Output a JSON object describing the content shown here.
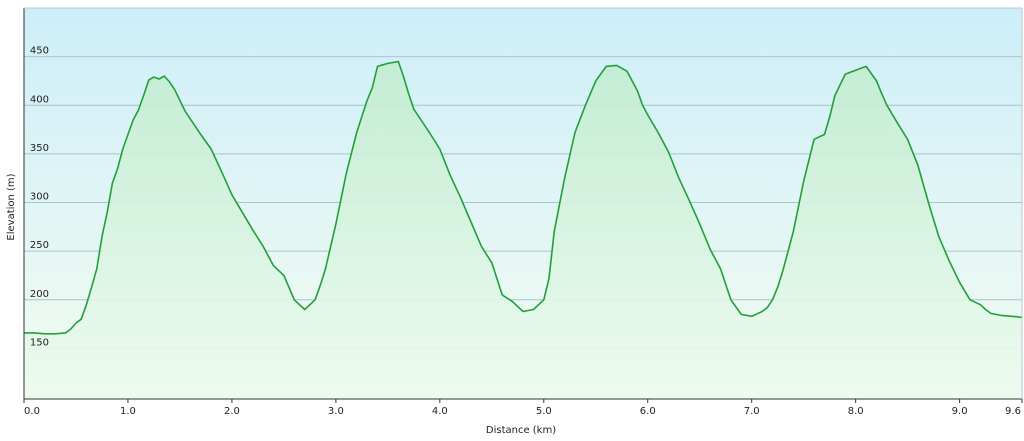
{
  "chart_data": {
    "type": "area",
    "title": "",
    "xlabel": "Distance  (km)",
    "ylabel": "Elevation (m)",
    "xlim": [
      0,
      9.6
    ],
    "ylim": [
      98,
      500
    ],
    "x_ticks": [
      0,
      1,
      2,
      3,
      4,
      5,
      6,
      7,
      8,
      9,
      9.6
    ],
    "x_tick_labels": [
      "0.0",
      "1.0",
      "2.0",
      "3.0",
      "4.0",
      "5.0",
      "6.0",
      "7.0",
      "8.0",
      "9.0",
      "9.6"
    ],
    "y_ticks": [
      150,
      200,
      250,
      300,
      350,
      400,
      450
    ],
    "y_tick_labels": [
      "150",
      "200",
      "250",
      "300",
      "350",
      "400",
      "450"
    ],
    "grid": true,
    "legend": "none",
    "colors": {
      "line": "#21a03a",
      "fill_top": "#c2ecd0",
      "fill_bottom": "#ecfbef",
      "bg_top": "#cdeef9",
      "bg_bottom": "#f4fcf1",
      "grid": "#aac4d0",
      "axis": "#333333"
    },
    "series": [
      {
        "x": [
          0.0,
          0.1,
          0.2,
          0.3,
          0.4,
          0.45,
          0.5,
          0.55,
          0.6,
          0.65,
          0.7,
          0.75,
          0.8,
          0.85,
          0.9,
          0.95,
          1.0,
          1.05,
          1.1,
          1.15,
          1.2,
          1.25,
          1.3,
          1.35,
          1.4,
          1.45,
          1.5,
          1.55,
          1.6,
          1.7,
          1.8,
          1.9,
          2.0,
          2.1,
          2.2,
          2.3,
          2.4,
          2.5,
          2.6,
          2.65,
          2.7,
          2.75,
          2.8,
          2.85,
          2.9,
          3.0,
          3.1,
          3.2,
          3.3,
          3.35,
          3.4,
          3.5,
          3.6,
          3.65,
          3.7,
          3.75,
          3.8,
          3.9,
          4.0,
          4.1,
          4.2,
          4.3,
          4.4,
          4.5,
          4.6,
          4.7,
          4.8,
          4.9,
          4.95,
          5.0,
          5.05,
          5.1,
          5.2,
          5.3,
          5.4,
          5.5,
          5.6,
          5.7,
          5.8,
          5.9,
          5.95,
          6.0,
          6.1,
          6.2,
          6.3,
          6.4,
          6.5,
          6.6,
          6.7,
          6.8,
          6.9,
          7.0,
          7.1,
          7.15,
          7.2,
          7.25,
          7.3,
          7.4,
          7.5,
          7.6,
          7.7,
          7.75,
          7.8,
          7.9,
          8.0,
          8.05,
          8.1,
          8.2,
          8.25,
          8.3,
          8.4,
          8.5,
          8.6,
          8.7,
          8.8,
          8.9,
          9.0,
          9.1,
          9.2,
          9.25,
          9.3,
          9.4,
          9.5,
          9.6
        ],
        "y": [
          166,
          166,
          165,
          165,
          166,
          170,
          176,
          180,
          195,
          213,
          232,
          265,
          290,
          320,
          335,
          355,
          370,
          385,
          395,
          410,
          426,
          429,
          427,
          430,
          424,
          416,
          405,
          394,
          386,
          370,
          355,
          332,
          308,
          290,
          272,
          255,
          235,
          225,
          200,
          195,
          190,
          195,
          200,
          215,
          232,
          278,
          330,
          372,
          405,
          418,
          440,
          443,
          445,
          430,
          412,
          396,
          388,
          372,
          355,
          328,
          305,
          280,
          255,
          238,
          205,
          198,
          188,
          190,
          195,
          200,
          222,
          270,
          325,
          372,
          400,
          425,
          440,
          441,
          435,
          415,
          400,
          390,
          372,
          352,
          325,
          302,
          278,
          252,
          232,
          200,
          185,
          183,
          188,
          192,
          200,
          213,
          230,
          270,
          322,
          365,
          370,
          388,
          410,
          432,
          436,
          438,
          440,
          425,
          412,
          400,
          382,
          365,
          338,
          300,
          265,
          240,
          218,
          200,
          195,
          190,
          186,
          184,
          183,
          182
        ]
      }
    ]
  }
}
